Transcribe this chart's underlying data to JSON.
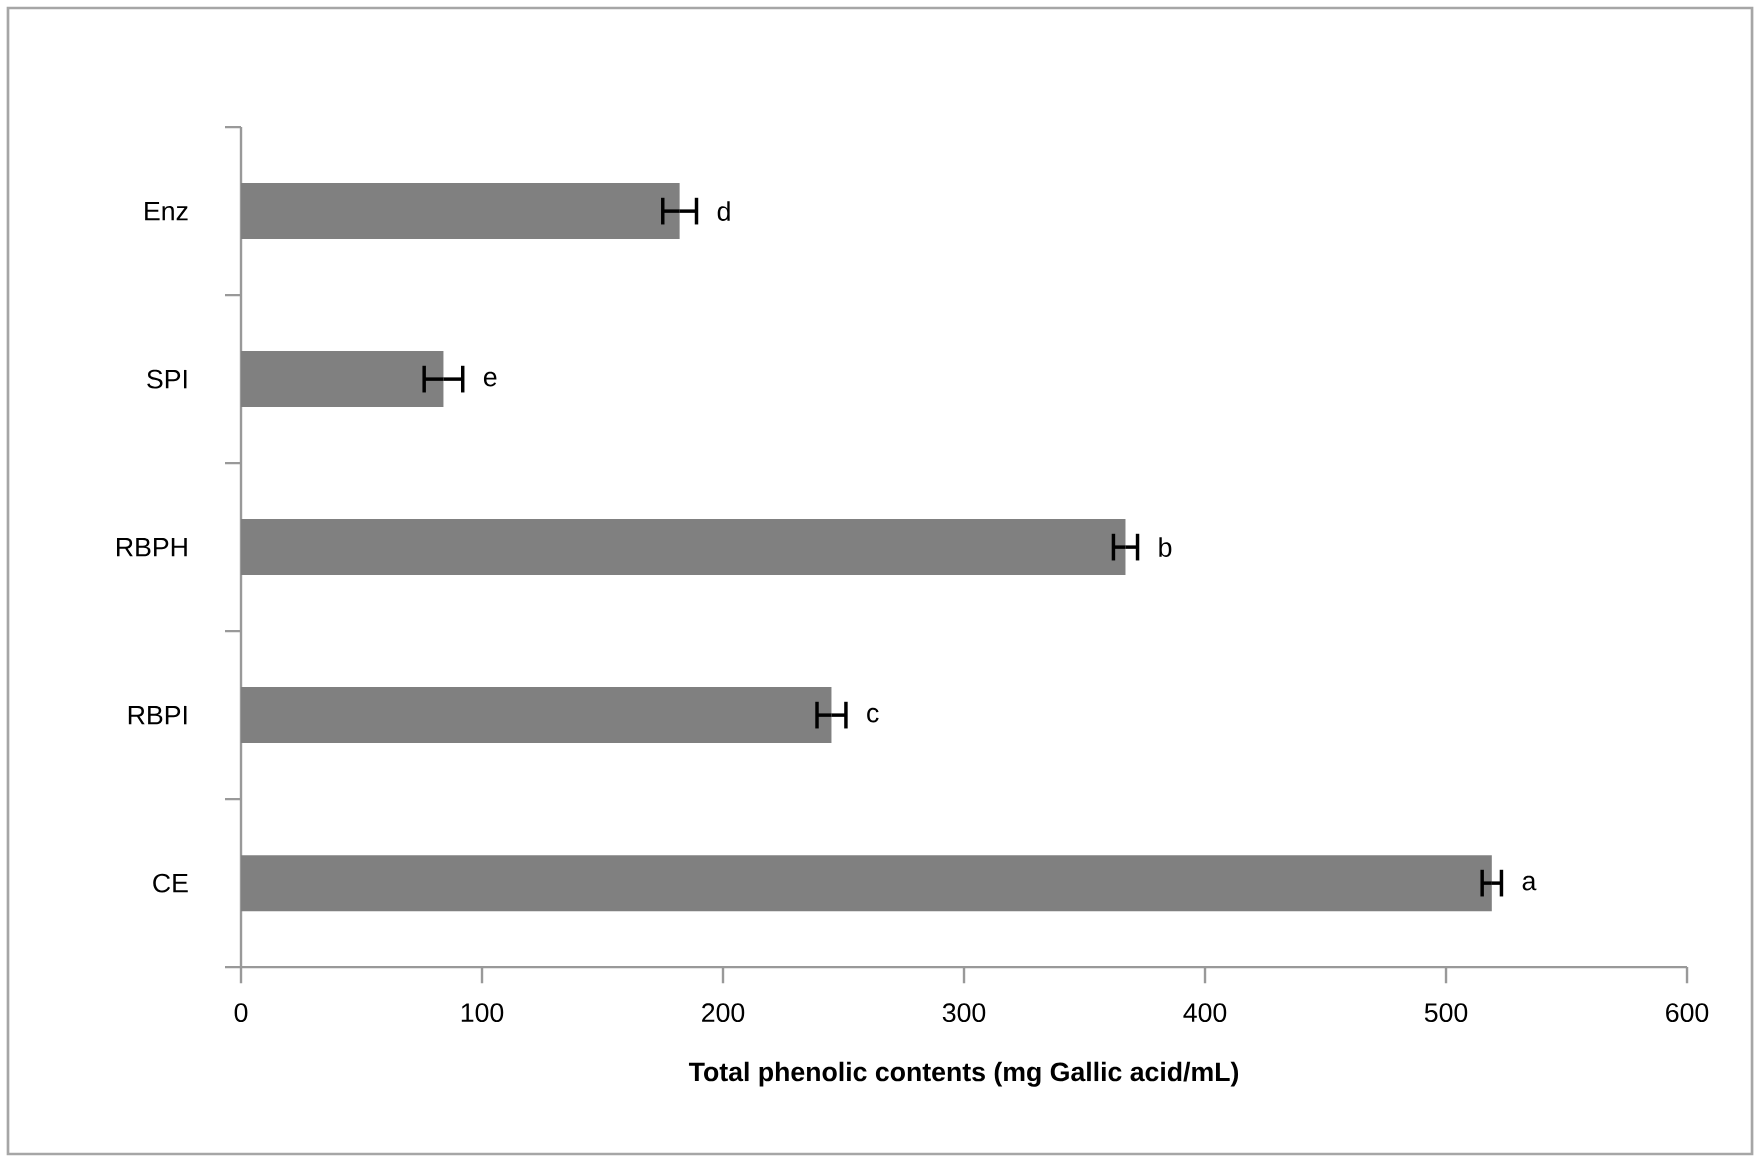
{
  "chart_data": {
    "type": "bar",
    "orientation": "horizontal",
    "xlabel": "Total phenolic contents (mg Gallic acid/mL)",
    "categories": [
      "Enz",
      "SPI",
      "RBPH",
      "RBPI",
      "CE"
    ],
    "values": [
      182,
      84,
      367,
      245,
      519
    ],
    "errors": [
      7,
      8,
      5,
      6,
      4
    ],
    "color": "#808080",
    "xlim": [
      0,
      600
    ],
    "xticks": [
      0,
      100,
      200,
      300,
      400,
      500,
      600
    ],
    "grid": false,
    "annotations": [
      {
        "text": "d",
        "x": 189,
        "y": "Enz"
      },
      {
        "text": "e",
        "x": 92,
        "y": "SPI"
      },
      {
        "text": "b",
        "x": 372,
        "y": "RBPH"
      },
      {
        "text": "c",
        "x": 251,
        "y": "RBPI"
      },
      {
        "text": "a",
        "x": 523,
        "y": "CE"
      }
    ]
  }
}
